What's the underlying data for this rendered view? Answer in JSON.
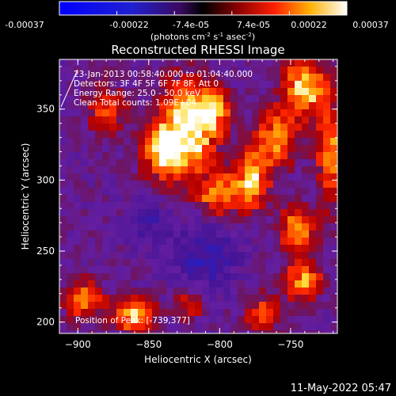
{
  "chart_data": {
    "type": "heatmap",
    "title": "Reconstructed RHESSI Image",
    "colorbar": {
      "ticks": [
        "-0.00037",
        "-0.00022",
        "-7.4e-05",
        "7.4e-05",
        "0.00022",
        "0.00037"
      ],
      "label_main": "(photons cm",
      "label_sup1": "-2",
      "label_mid1": " s",
      "label_sup2": "-1",
      "label_mid2": " asec",
      "label_sup3": "-2",
      "label_end": ")",
      "range": [
        -0.00037,
        0.00037
      ]
    },
    "xlabel": "Heliocentric X (arcsec)",
    "ylabel": "Heliocentric Y (arcsec)",
    "x_ticks": [
      -900,
      -850,
      -800,
      -750
    ],
    "y_ticks": [
      200,
      250,
      300,
      350
    ],
    "xlim": [
      -913,
      -717
    ],
    "ylim": [
      192,
      385
    ],
    "annotations": {
      "line1": "23-Jan-2013 00:58:40.000 to 01:04:40.000",
      "line2": "Detectors: 3F 4F 5F 6F 7F 8F, Att 0",
      "line3": "Energy Range: 25.0 - 50.0 keV",
      "line4": "Clean     Total counts: 1.09E+04",
      "peak": "Position of Peak: [-739,377]"
    },
    "blobs": [
      {
        "x": -823,
        "y": 335,
        "amp": 1.0,
        "sx": 14,
        "sy": 22
      },
      {
        "x": -840,
        "y": 320,
        "amp": 0.75,
        "sx": 10,
        "sy": 12
      },
      {
        "x": -805,
        "y": 350,
        "amp": 0.7,
        "sx": 9,
        "sy": 10
      },
      {
        "x": -800,
        "y": 290,
        "amp": 0.7,
        "sx": 10,
        "sy": 9
      },
      {
        "x": -778,
        "y": 300,
        "amp": 0.75,
        "sx": 9,
        "sy": 14
      },
      {
        "x": -760,
        "y": 330,
        "amp": 0.7,
        "sx": 10,
        "sy": 14
      },
      {
        "x": -740,
        "y": 365,
        "amp": 0.85,
        "sx": 10,
        "sy": 14
      },
      {
        "x": -745,
        "y": 265,
        "amp": 0.75,
        "sx": 9,
        "sy": 10
      },
      {
        "x": -722,
        "y": 320,
        "amp": 0.65,
        "sx": 6,
        "sy": 25
      },
      {
        "x": -742,
        "y": 230,
        "amp": 0.7,
        "sx": 9,
        "sy": 10
      },
      {
        "x": -860,
        "y": 205,
        "amp": 0.85,
        "sx": 10,
        "sy": 8
      },
      {
        "x": -895,
        "y": 215,
        "amp": 0.65,
        "sx": 9,
        "sy": 9
      },
      {
        "x": -770,
        "y": 205,
        "amp": 0.55,
        "sx": 9,
        "sy": 9
      },
      {
        "x": -822,
        "y": 212,
        "amp": 0.45,
        "sx": 7,
        "sy": 7
      },
      {
        "x": -880,
        "y": 350,
        "amp": 0.5,
        "sx": 9,
        "sy": 12
      },
      {
        "x": -810,
        "y": 245,
        "amp": -0.35,
        "sx": 15,
        "sy": 15
      },
      {
        "x": -850,
        "y": 270,
        "amp": -0.25,
        "sx": 10,
        "sy": 10
      }
    ]
  },
  "footer": {
    "timestamp": "11-May-2022 05:47"
  }
}
